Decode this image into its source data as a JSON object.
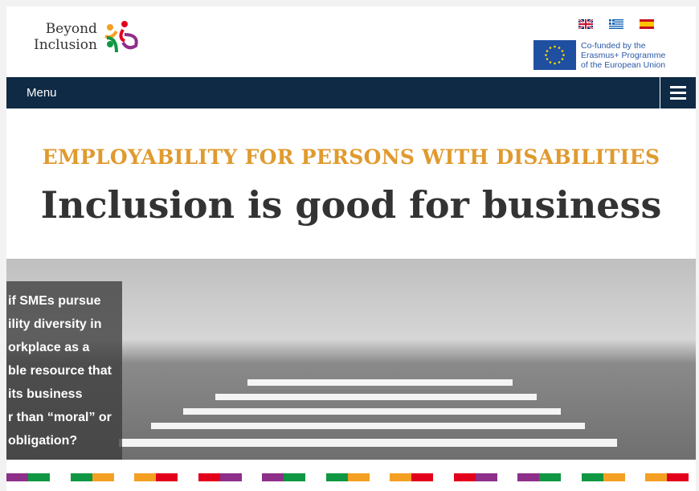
{
  "header": {
    "logo_line1": "Beyond",
    "logo_line2": "Inclusion",
    "languages": [
      {
        "name": "English",
        "icon": "uk-flag-icon"
      },
      {
        "name": "Greek",
        "icon": "greece-flag-icon"
      },
      {
        "name": "Spanish",
        "icon": "spain-flag-icon"
      }
    ],
    "eu_text": [
      "Co-funded by the",
      "Erasmus+ Programme",
      "of the European Union"
    ]
  },
  "nav": {
    "menu_label": "Menu",
    "menu_icon": "hamburger-icon"
  },
  "hero": {
    "kicker": "EMPLOYABILITY FOR PERSONS WITH DISABILITIES",
    "title": "Inclusion is good for business",
    "overlay_lines": [
      "if SMEs pursue",
      "ility diversity in",
      "orkplace as a",
      "ble resource that",
      "its business",
      "r than “moral” or",
      "obligation?"
    ]
  },
  "colors": {
    "nav": "#0e2a45",
    "kicker": "#e09a2e",
    "purple": "#8e2f8a",
    "green": "#109744",
    "orange": "#f4a022",
    "red": "#e3001b"
  }
}
